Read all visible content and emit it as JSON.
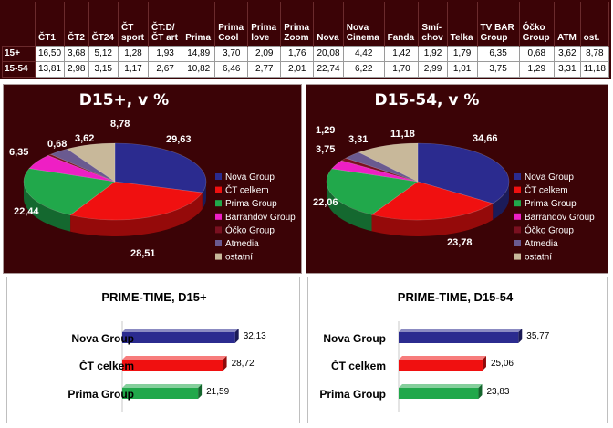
{
  "table": {
    "columns": [
      "ČT1",
      "ČT2",
      "ČT24",
      "ČT\nsport",
      "ČT:D/\nČT art",
      "Prima",
      "Prima\nCool",
      "Prima\nlove",
      "Prima\nZoom",
      "Nova",
      "Nova\nCinema",
      "Fanda",
      "Smí-\nchov",
      "Telka",
      "TV BAR\nGroup",
      "Óčko\nGroup",
      "ATM",
      "ost."
    ],
    "rows": [
      {
        "label": "15+",
        "values": [
          "16,50",
          "3,68",
          "5,12",
          "1,28",
          "1,93",
          "14,89",
          "3,70",
          "2,09",
          "1,76",
          "20,08",
          "4,42",
          "1,42",
          "1,92",
          "1,79",
          "6,35",
          "0,68",
          "3,62",
          "8,78"
        ]
      },
      {
        "label": "15-54",
        "values": [
          "13,81",
          "2,98",
          "3,15",
          "1,17",
          "2,67",
          "10,82",
          "6,46",
          "2,77",
          "2,01",
          "22,74",
          "6,22",
          "1,70",
          "2,99",
          "1,01",
          "3,75",
          "1,29",
          "3,31",
          "11,18"
        ]
      }
    ]
  },
  "chart_data": [
    {
      "type": "pie",
      "title": "D15+, v %",
      "categories": [
        "Nova Group",
        "ČT celkem",
        "Prima Group",
        "Barrandov Group",
        "Óčko Group",
        "Atmedia",
        "ostatní"
      ],
      "values": [
        29.63,
        28.51,
        22.44,
        6.35,
        0.68,
        3.62,
        8.78
      ],
      "labels": [
        "29,63",
        "28,51",
        "22,44",
        "6,35",
        "0,68",
        "3,62",
        "8,78"
      ],
      "colors": [
        "#2b2b8f",
        "#f01010",
        "#21a84b",
        "#ee1fc4",
        "#7a1020",
        "#6a5a90",
        "#c8b89a"
      ],
      "legend_position": "right"
    },
    {
      "type": "pie",
      "title": "D15-54, v %",
      "categories": [
        "Nova Group",
        "ČT celkem",
        "Prima Group",
        "Barrandov Group",
        "Óčko Group",
        "Atmedia",
        "ostatní"
      ],
      "values": [
        34.66,
        23.78,
        22.06,
        3.75,
        1.29,
        3.31,
        11.18
      ],
      "labels": [
        "34,66",
        "23,78",
        "22,06",
        "3,75",
        "1,29",
        "3,31",
        "11,18"
      ],
      "colors": [
        "#2b2b8f",
        "#f01010",
        "#21a84b",
        "#ee1fc4",
        "#7a1020",
        "#6a5a90",
        "#c8b89a"
      ],
      "legend_position": "right"
    },
    {
      "type": "bar",
      "orientation": "horizontal",
      "title": "PRIME-TIME, D15+",
      "categories": [
        "Nova Group",
        "ČT celkem",
        "Prima Group"
      ],
      "values": [
        32.13,
        28.72,
        21.59
      ],
      "labels": [
        "32,13",
        "28,72",
        "21,59"
      ],
      "colors": [
        "#2b2b8f",
        "#f01010",
        "#21a84b"
      ],
      "xlim": [
        0,
        40
      ]
    },
    {
      "type": "bar",
      "orientation": "horizontal",
      "title": "PRIME-TIME, D15-54",
      "categories": [
        "Nova Group",
        "ČT celkem",
        "Prima Group"
      ],
      "values": [
        35.77,
        25.06,
        23.83
      ],
      "labels": [
        "35,77",
        "25,06",
        "23,83"
      ],
      "colors": [
        "#2b2b8f",
        "#f01010",
        "#21a84b"
      ],
      "xlim": [
        0,
        40
      ]
    }
  ]
}
